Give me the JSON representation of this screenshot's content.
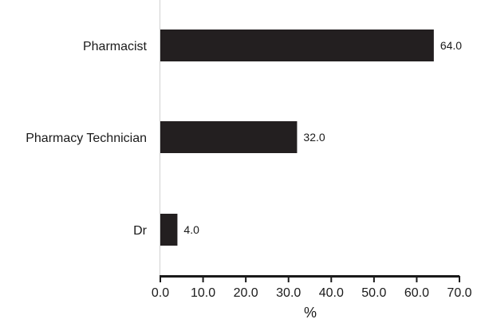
{
  "chart_data": {
    "type": "bar",
    "orientation": "horizontal",
    "title": "",
    "xlabel": "%",
    "ylabel": "",
    "categories": [
      "Pharmacist",
      "Pharmacy Technician",
      "Dr"
    ],
    "values": [
      64.0,
      32.0,
      4.0
    ],
    "value_labels": [
      "64.0",
      "32.0",
      "4.0"
    ],
    "xlim": [
      0,
      70
    ],
    "x_ticks": [
      "0.0",
      "10.0",
      "20.0",
      "30.0",
      "40.0",
      "50.0",
      "60.0",
      "70.0"
    ],
    "grid": false,
    "legend": "none",
    "bar_color": "#231f20"
  }
}
